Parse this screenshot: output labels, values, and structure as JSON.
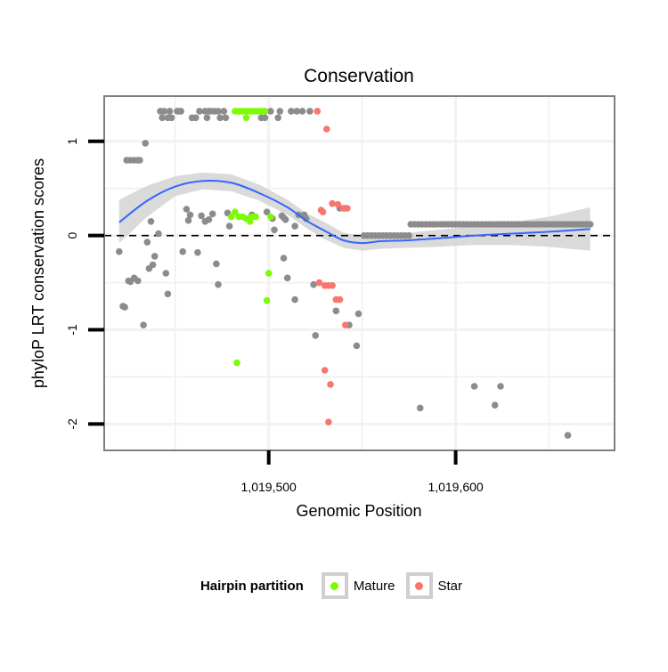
{
  "colors": {
    "other": "#8c8c8c",
    "mature": "#7cfc00",
    "star": "#f8766d",
    "smooth": "#3366ff",
    "band": "#d4d4d4",
    "grid": "#f2f2f2",
    "panel_border": "#7f7f7f"
  },
  "legend": {
    "title": "Hairpin partition",
    "items": [
      {
        "label": "Mature",
        "color": "#7cfc00"
      },
      {
        "label": "Star",
        "color": "#f8766d"
      }
    ]
  },
  "chart_data": {
    "type": "scatter",
    "title": "Conservation",
    "xlabel": "Genomic Position",
    "ylabel": "phyloP LRT conservation scores",
    "xlim": [
      1019412,
      1019685
    ],
    "ylim": [
      -2.28,
      1.48
    ],
    "x_ticks": [
      1019500,
      1019600
    ],
    "x_tick_labels": [
      "1,019,500",
      "1,019,600"
    ],
    "y_ticks": [
      1,
      0,
      -1,
      -2
    ],
    "y_tick_labels": [
      "1",
      "0",
      "-1",
      "-2"
    ],
    "reference_line": {
      "y": 0,
      "style": "dashed"
    },
    "grid": true,
    "legend_position": "bottom",
    "series": [
      {
        "name": "",
        "points": [
          [
            1019420,
            -0.17
          ],
          [
            1019422,
            -0.75
          ],
          [
            1019423,
            -0.76
          ],
          [
            1019425,
            -0.48
          ],
          [
            1019426,
            -0.49
          ],
          [
            1019424,
            0.8
          ],
          [
            1019426,
            0.8
          ],
          [
            1019428,
            0.8
          ],
          [
            1019430,
            0.8
          ],
          [
            1019431,
            0.8
          ],
          [
            1019428,
            -0.45
          ],
          [
            1019430,
            -0.48
          ],
          [
            1019433,
            -0.95
          ],
          [
            1019434,
            0.98
          ],
          [
            1019435,
            -0.07
          ],
          [
            1019436,
            -0.35
          ],
          [
            1019437,
            0.15
          ],
          [
            1019438,
            -0.31
          ],
          [
            1019439,
            -0.22
          ],
          [
            1019441,
            0.02
          ],
          [
            1019442,
            1.32
          ],
          [
            1019443,
            1.25
          ],
          [
            1019444,
            1.32
          ],
          [
            1019445,
            -0.4
          ],
          [
            1019446,
            1.25
          ],
          [
            1019446,
            -0.62
          ],
          [
            1019447,
            1.32
          ],
          [
            1019448,
            1.25
          ],
          [
            1019451,
            1.32
          ],
          [
            1019452,
            1.32
          ],
          [
            1019453,
            1.32
          ],
          [
            1019454,
            -0.17
          ],
          [
            1019456,
            0.28
          ],
          [
            1019457,
            0.16
          ],
          [
            1019458,
            0.22
          ],
          [
            1019459,
            1.25
          ],
          [
            1019461,
            1.25
          ],
          [
            1019462,
            -0.18
          ],
          [
            1019463,
            1.32
          ],
          [
            1019464,
            0.21
          ],
          [
            1019466,
            1.32
          ],
          [
            1019466,
            0.15
          ],
          [
            1019467,
            1.25
          ],
          [
            1019468,
            0.17
          ],
          [
            1019468,
            1.32
          ],
          [
            1019469,
            1.32
          ],
          [
            1019470,
            0.23
          ],
          [
            1019471,
            1.32
          ],
          [
            1019472,
            -0.3
          ],
          [
            1019473,
            1.32
          ],
          [
            1019473,
            -0.52
          ],
          [
            1019474,
            1.25
          ],
          [
            1019476,
            1.32
          ],
          [
            1019477,
            1.25
          ],
          [
            1019478,
            0.24
          ],
          [
            1019479,
            0.1
          ],
          [
            1019491,
            0.22
          ],
          [
            1019496,
            1.25
          ],
          [
            1019498,
            1.25
          ],
          [
            1019499,
            0.25
          ],
          [
            1019501,
            1.32
          ],
          [
            1019502,
            0.18
          ],
          [
            1019503,
            0.06
          ],
          [
            1019505,
            1.25
          ],
          [
            1019506,
            1.32
          ],
          [
            1019507,
            0.21
          ],
          [
            1019508,
            0.19
          ],
          [
            1019508,
            -0.24
          ],
          [
            1019509,
            0.17
          ],
          [
            1019510,
            -0.45
          ],
          [
            1019512,
            1.32
          ],
          [
            1019514,
            0.1
          ],
          [
            1019514,
            -0.68
          ],
          [
            1019515,
            1.32
          ],
          [
            1019516,
            0.22
          ],
          [
            1019518,
            1.32
          ],
          [
            1019519,
            0.22
          ],
          [
            1019520,
            0.18
          ],
          [
            1019522,
            1.32
          ],
          [
            1019524,
            -0.52
          ],
          [
            1019525,
            -1.06
          ],
          [
            1019536,
            -0.8
          ],
          [
            1019538,
            0.29
          ],
          [
            1019541,
            0.29
          ],
          [
            1019543,
            -0.95
          ],
          [
            1019547,
            -1.17
          ],
          [
            1019548,
            -0.83
          ],
          [
            1019551,
            0.0
          ],
          [
            1019553,
            0.0
          ],
          [
            1019555,
            0.0
          ],
          [
            1019557,
            0.0
          ],
          [
            1019559,
            0.0
          ],
          [
            1019561,
            0.0
          ],
          [
            1019563,
            0.0
          ],
          [
            1019565,
            0.0
          ],
          [
            1019567,
            0.0
          ],
          [
            1019569,
            0.0
          ],
          [
            1019571,
            0.0
          ],
          [
            1019573,
            0.0
          ],
          [
            1019575,
            0.0
          ],
          [
            1019576,
            0.12
          ],
          [
            1019578,
            0.12
          ],
          [
            1019580,
            0.12
          ],
          [
            1019582,
            0.12
          ],
          [
            1019584,
            0.12
          ],
          [
            1019586,
            0.12
          ],
          [
            1019588,
            0.12
          ],
          [
            1019590,
            0.12
          ],
          [
            1019592,
            0.12
          ],
          [
            1019594,
            0.12
          ],
          [
            1019596,
            0.12
          ],
          [
            1019598,
            0.12
          ],
          [
            1019600,
            0.12
          ],
          [
            1019602,
            0.12
          ],
          [
            1019604,
            0.12
          ],
          [
            1019606,
            0.12
          ],
          [
            1019608,
            0.12
          ],
          [
            1019610,
            0.12
          ],
          [
            1019612,
            0.12
          ],
          [
            1019614,
            0.12
          ],
          [
            1019616,
            0.12
          ],
          [
            1019618,
            0.12
          ],
          [
            1019620,
            0.12
          ],
          [
            1019622,
            0.12
          ],
          [
            1019624,
            0.12
          ],
          [
            1019626,
            0.12
          ],
          [
            1019628,
            0.12
          ],
          [
            1019630,
            0.12
          ],
          [
            1019632,
            0.12
          ],
          [
            1019634,
            0.12
          ],
          [
            1019636,
            0.12
          ],
          [
            1019638,
            0.12
          ],
          [
            1019640,
            0.12
          ],
          [
            1019642,
            0.12
          ],
          [
            1019644,
            0.12
          ],
          [
            1019646,
            0.12
          ],
          [
            1019648,
            0.12
          ],
          [
            1019650,
            0.12
          ],
          [
            1019652,
            0.12
          ],
          [
            1019654,
            0.12
          ],
          [
            1019656,
            0.12
          ],
          [
            1019658,
            0.12
          ],
          [
            1019660,
            0.12
          ],
          [
            1019662,
            0.12
          ],
          [
            1019664,
            0.12
          ],
          [
            1019666,
            0.12
          ],
          [
            1019668,
            0.12
          ],
          [
            1019670,
            0.12
          ],
          [
            1019672,
            0.12
          ],
          [
            1019581,
            -1.83
          ],
          [
            1019610,
            -1.6
          ],
          [
            1019621,
            -1.8
          ],
          [
            1019624,
            -1.6
          ],
          [
            1019660,
            -2.12
          ]
        ]
      },
      {
        "name": "Mature",
        "points": [
          [
            1019480,
            0.2
          ],
          [
            1019482,
            0.25
          ],
          [
            1019484,
            0.2
          ],
          [
            1019486,
            0.2
          ],
          [
            1019488,
            0.18
          ],
          [
            1019490,
            0.15
          ],
          [
            1019491,
            0.2
          ],
          [
            1019493,
            0.2
          ],
          [
            1019483,
            -1.35
          ],
          [
            1019500,
            -0.4
          ],
          [
            1019499,
            -0.69
          ],
          [
            1019501,
            0.2
          ],
          [
            1019488,
            1.25
          ],
          [
            1019482,
            1.32
          ],
          [
            1019484,
            1.32
          ],
          [
            1019486,
            1.32
          ],
          [
            1019488,
            1.32
          ],
          [
            1019490,
            1.32
          ],
          [
            1019492,
            1.32
          ],
          [
            1019494,
            1.32
          ],
          [
            1019496,
            1.32
          ],
          [
            1019498,
            1.32
          ]
        ]
      },
      {
        "name": "Star",
        "points": [
          [
            1019526,
            1.32
          ],
          [
            1019528,
            0.27
          ],
          [
            1019531,
            1.13
          ],
          [
            1019529,
            0.25
          ],
          [
            1019534,
            0.34
          ],
          [
            1019537,
            0.33
          ],
          [
            1019540,
            0.29
          ],
          [
            1019542,
            0.29
          ],
          [
            1019527,
            -0.5
          ],
          [
            1019530,
            -0.53
          ],
          [
            1019532,
            -0.53
          ],
          [
            1019534,
            -0.53
          ],
          [
            1019536,
            -0.68
          ],
          [
            1019538,
            -0.68
          ],
          [
            1019541,
            -0.95
          ],
          [
            1019530,
            -1.43
          ],
          [
            1019533,
            -1.58
          ],
          [
            1019532,
            -1.98
          ]
        ]
      }
    ],
    "smooth_curve": [
      [
        1019420,
        0.14
      ],
      [
        1019435,
        0.37
      ],
      [
        1019450,
        0.52
      ],
      [
        1019465,
        0.58
      ],
      [
        1019480,
        0.56
      ],
      [
        1019495,
        0.45
      ],
      [
        1019510,
        0.3
      ],
      [
        1019520,
        0.16
      ],
      [
        1019530,
        0.05
      ],
      [
        1019540,
        -0.05
      ],
      [
        1019550,
        -0.08
      ],
      [
        1019560,
        -0.06
      ],
      [
        1019575,
        -0.05
      ],
      [
        1019590,
        -0.03
      ],
      [
        1019610,
        0.0
      ],
      [
        1019630,
        0.02
      ],
      [
        1019650,
        0.04
      ],
      [
        1019672,
        0.07
      ]
    ],
    "smooth_band": [
      [
        1019420,
        -0.08,
        0.38
      ],
      [
        1019435,
        0.2,
        0.53
      ],
      [
        1019450,
        0.42,
        0.63
      ],
      [
        1019465,
        0.49,
        0.67
      ],
      [
        1019480,
        0.47,
        0.65
      ],
      [
        1019495,
        0.37,
        0.54
      ],
      [
        1019510,
        0.22,
        0.38
      ],
      [
        1019520,
        0.08,
        0.24
      ],
      [
        1019530,
        -0.04,
        0.14
      ],
      [
        1019540,
        -0.13,
        0.03
      ],
      [
        1019550,
        -0.16,
        0.0
      ],
      [
        1019560,
        -0.14,
        0.02
      ],
      [
        1019575,
        -0.13,
        0.03
      ],
      [
        1019590,
        -0.12,
        0.06
      ],
      [
        1019610,
        -0.1,
        0.1
      ],
      [
        1019630,
        -0.1,
        0.14
      ],
      [
        1019650,
        -0.12,
        0.2
      ],
      [
        1019672,
        -0.16,
        0.3
      ]
    ]
  }
}
